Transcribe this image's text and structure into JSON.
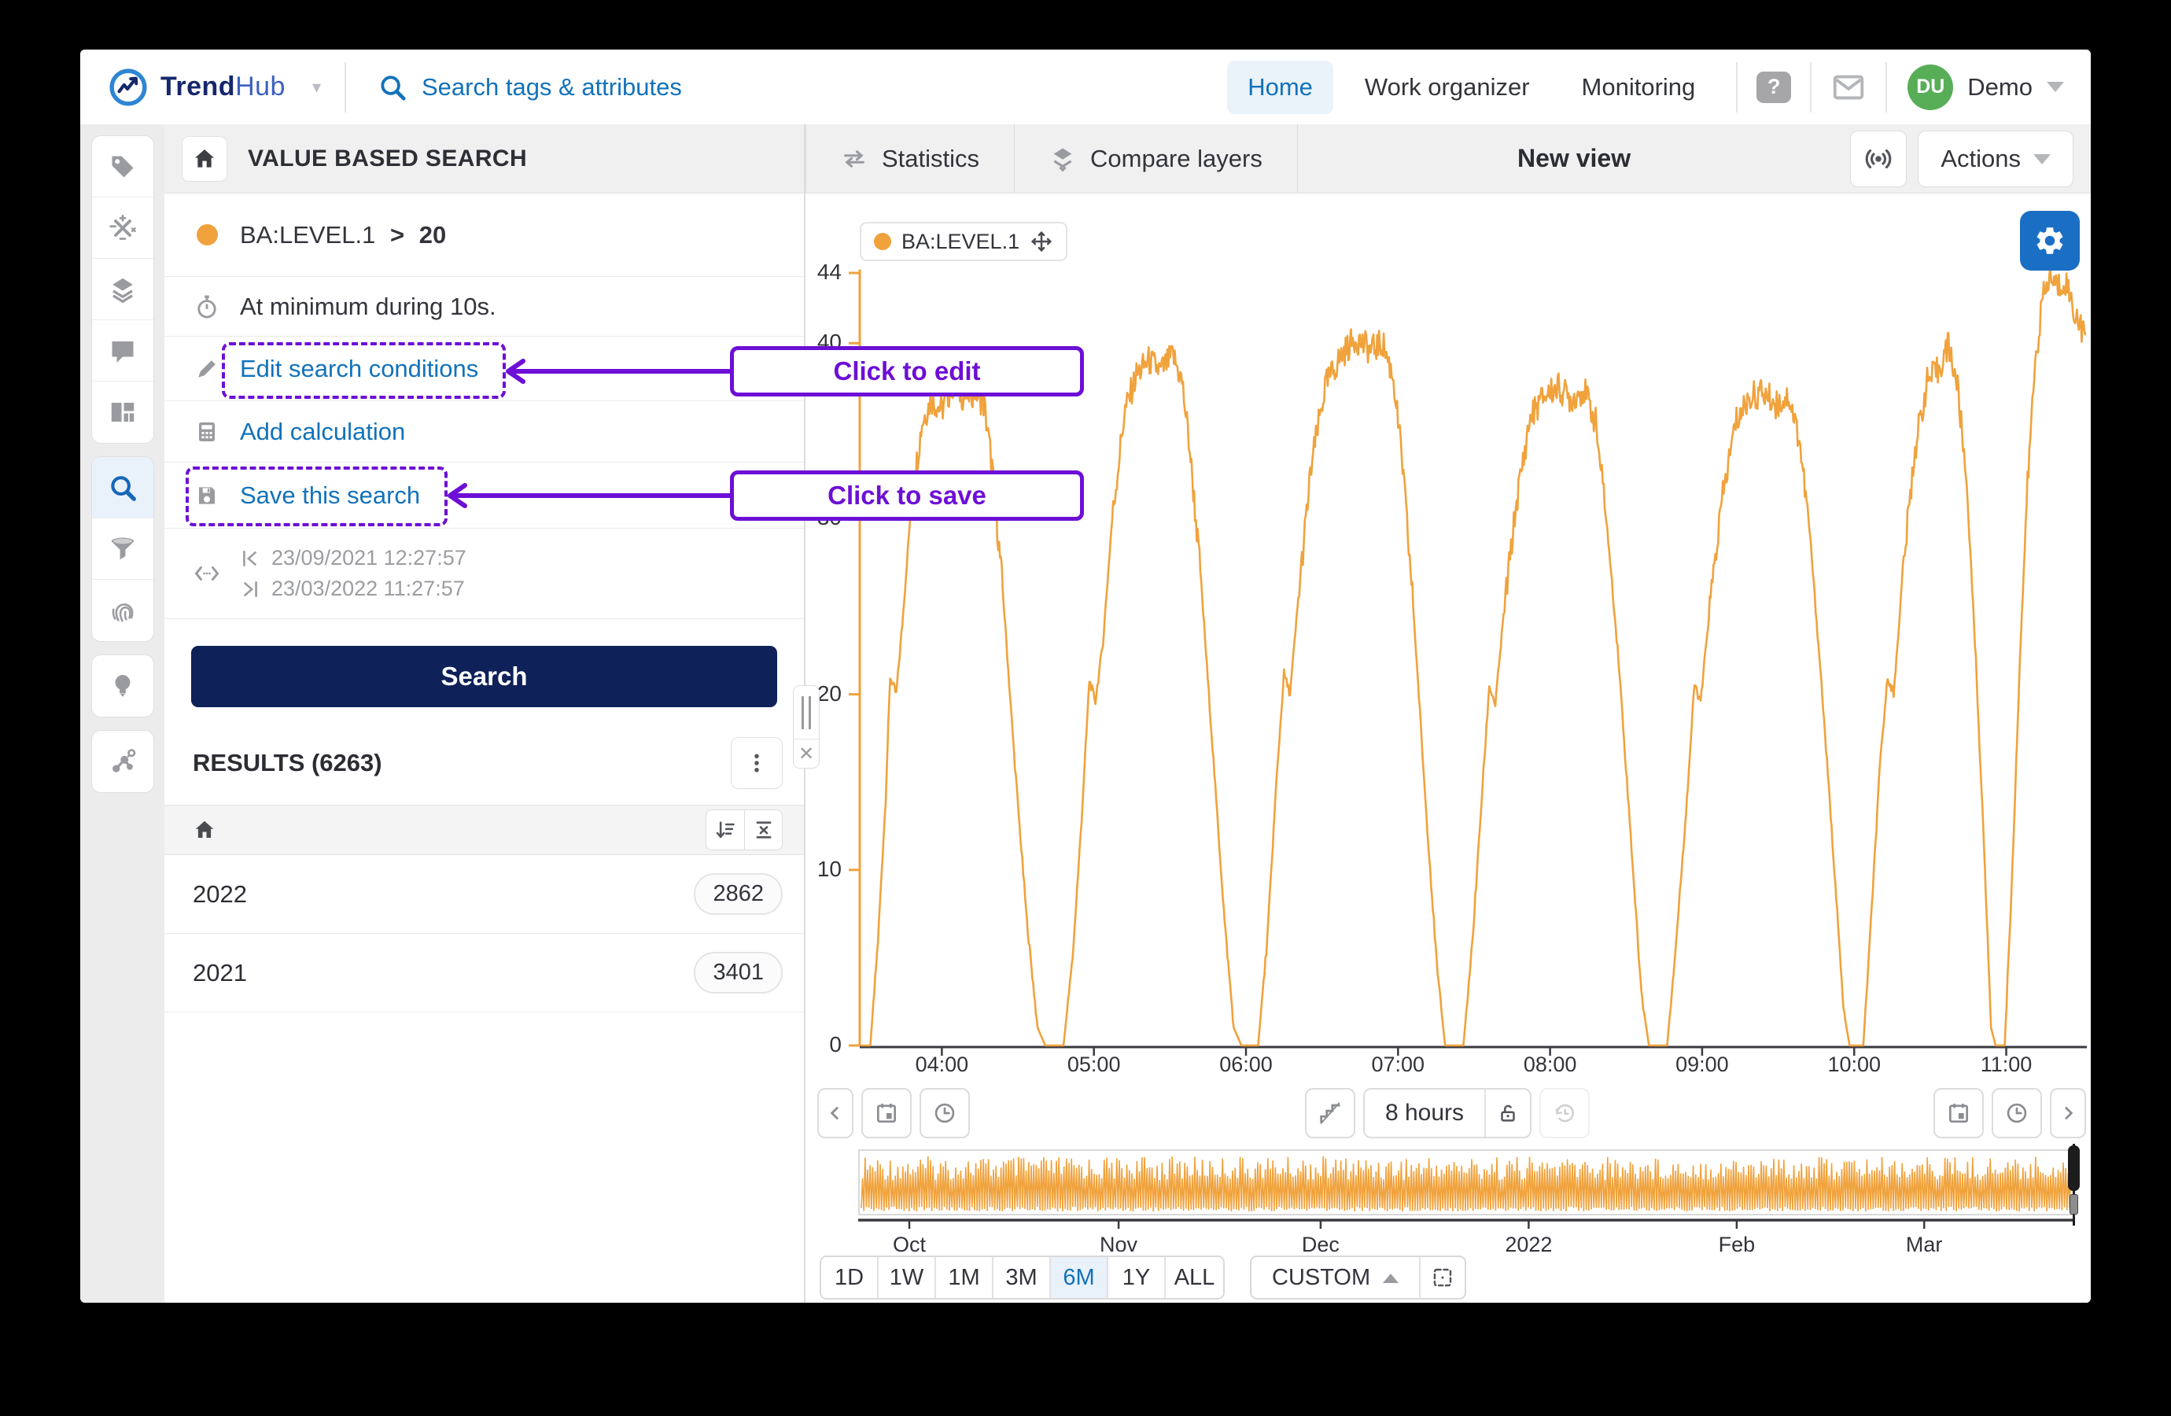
{
  "topbar": {
    "brand": {
      "name_bold": "Trend",
      "name_light": "Hub"
    },
    "search_placeholder": "Search tags & attributes",
    "nav": [
      {
        "label": "Home",
        "active": true
      },
      {
        "label": "Work organizer",
        "active": false
      },
      {
        "label": "Monitoring",
        "active": false
      }
    ],
    "user": {
      "initials": "DU",
      "name": "Demo",
      "avatar_color": "#57ae57"
    }
  },
  "rail": {
    "active_tool": "search",
    "tools": [
      "tags",
      "calculations",
      "layers",
      "comments",
      "dashboards",
      "search",
      "filters",
      "fingerprints",
      "recommendations",
      "machine-learning"
    ]
  },
  "panel": {
    "header": {
      "title": "VALUE BASED SEARCH"
    },
    "conditions": {
      "tag": "BA:LEVEL.1",
      "operator": ">",
      "value": "20",
      "duration": "At minimum during 10s.",
      "edit_link": "Edit search conditions",
      "add_calc_link": "Add calculation",
      "save_link": "Save this search",
      "start_time": "23/09/2021 12:27:57",
      "end_time": "23/03/2022 11:27:57"
    },
    "search_button": "Search",
    "results": {
      "title": "RESULTS (6263)",
      "rows": [
        {
          "label": "2022",
          "count": "2862"
        },
        {
          "label": "2021",
          "count": "3401"
        }
      ]
    }
  },
  "chart_header": {
    "tabs": [
      {
        "label": "Statistics"
      },
      {
        "label": "Compare layers"
      }
    ],
    "title": "New view",
    "actions_button": "Actions"
  },
  "annotations": [
    {
      "text": "Click to edit"
    },
    {
      "text": "Click to save"
    }
  ],
  "toolbar": {
    "duration_label": "8 hours"
  },
  "zoombar": {
    "presets": [
      "1D",
      "1W",
      "1M",
      "3M",
      "6M",
      "1Y",
      "ALL"
    ],
    "active": "6M",
    "custom_label": "CUSTOM"
  },
  "chart_data": {
    "type": "line",
    "title": "",
    "legend": {
      "label": "BA:LEVEL.1",
      "color": "#f0a23c"
    },
    "x_axis": {
      "unit": "time-of-day",
      "ticks": [
        "04:00",
        "05:00",
        "06:00",
        "07:00",
        "08:00",
        "09:00",
        "10:00",
        "11:00"
      ],
      "tick_hours": [
        4,
        5,
        6,
        7,
        8,
        9,
        10,
        11
      ],
      "range_hours": [
        3.46,
        11.53
      ]
    },
    "y_axis": {
      "ticks": [
        0,
        10,
        20,
        30,
        40,
        44
      ],
      "range": [
        0,
        44.6
      ],
      "axis_color": "#f0a23c"
    },
    "grid": false,
    "series": [
      {
        "name": "BA:LEVEL.1",
        "color": "#f0a23c",
        "points": [
          [
            3.47,
            0
          ],
          [
            3.53,
            0
          ],
          [
            3.58,
            6
          ],
          [
            3.63,
            14
          ],
          [
            3.66,
            21
          ],
          [
            3.7,
            20
          ],
          [
            3.74,
            24
          ],
          [
            3.8,
            31
          ],
          [
            3.87,
            35.5
          ],
          [
            3.93,
            36.8
          ],
          [
            4.0,
            36.2
          ],
          [
            4.07,
            37.6
          ],
          [
            4.15,
            36.9
          ],
          [
            4.22,
            37.3
          ],
          [
            4.28,
            36.4
          ],
          [
            4.33,
            33
          ],
          [
            4.4,
            26
          ],
          [
            4.48,
            16
          ],
          [
            4.56,
            7
          ],
          [
            4.63,
            1
          ],
          [
            4.68,
            0
          ],
          [
            4.8,
            0
          ],
          [
            4.86,
            5
          ],
          [
            4.92,
            13
          ],
          [
            4.97,
            20.8
          ],
          [
            5.01,
            19.6
          ],
          [
            5.06,
            23
          ],
          [
            5.12,
            30
          ],
          [
            5.2,
            36
          ],
          [
            5.28,
            38.2
          ],
          [
            5.36,
            39.0
          ],
          [
            5.44,
            38.4
          ],
          [
            5.52,
            39.3
          ],
          [
            5.58,
            37.8
          ],
          [
            5.63,
            34
          ],
          [
            5.7,
            27
          ],
          [
            5.78,
            17
          ],
          [
            5.86,
            7
          ],
          [
            5.92,
            1
          ],
          [
            5.97,
            0
          ],
          [
            6.08,
            0
          ],
          [
            6.14,
            6
          ],
          [
            6.2,
            15
          ],
          [
            6.25,
            21.2
          ],
          [
            6.29,
            20.0
          ],
          [
            6.35,
            26
          ],
          [
            6.43,
            33
          ],
          [
            6.52,
            37.5
          ],
          [
            6.62,
            39.2
          ],
          [
            6.72,
            40.3
          ],
          [
            6.82,
            39.6
          ],
          [
            6.9,
            40.0
          ],
          [
            6.97,
            38.0
          ],
          [
            7.03,
            33
          ],
          [
            7.1,
            25
          ],
          [
            7.18,
            14
          ],
          [
            7.26,
            4
          ],
          [
            7.31,
            0
          ],
          [
            7.43,
            0
          ],
          [
            7.49,
            6
          ],
          [
            7.55,
            14
          ],
          [
            7.6,
            20.5
          ],
          [
            7.64,
            19.4
          ],
          [
            7.7,
            25
          ],
          [
            7.78,
            31
          ],
          [
            7.87,
            35.8
          ],
          [
            7.96,
            37.0
          ],
          [
            8.05,
            37.5
          ],
          [
            8.14,
            36.8
          ],
          [
            8.22,
            37.4
          ],
          [
            8.3,
            35.5
          ],
          [
            8.37,
            30
          ],
          [
            8.45,
            22
          ],
          [
            8.53,
            12
          ],
          [
            8.6,
            3
          ],
          [
            8.65,
            0
          ],
          [
            8.77,
            0
          ],
          [
            8.83,
            6
          ],
          [
            8.9,
            14
          ],
          [
            8.95,
            20.6
          ],
          [
            8.99,
            19.5
          ],
          [
            9.05,
            25
          ],
          [
            9.13,
            31
          ],
          [
            9.22,
            35.5
          ],
          [
            9.31,
            36.9
          ],
          [
            9.4,
            37.2
          ],
          [
            9.49,
            36.5
          ],
          [
            9.57,
            37.0
          ],
          [
            9.64,
            34.5
          ],
          [
            9.71,
            29
          ],
          [
            9.79,
            20
          ],
          [
            9.87,
            10
          ],
          [
            9.93,
            2
          ],
          [
            9.97,
            0
          ],
          [
            10.06,
            0
          ],
          [
            10.11,
            7
          ],
          [
            10.17,
            16
          ],
          [
            10.22,
            21.0
          ],
          [
            10.26,
            20.0
          ],
          [
            10.32,
            27
          ],
          [
            10.4,
            34
          ],
          [
            10.48,
            37.8
          ],
          [
            10.55,
            38.4
          ],
          [
            10.62,
            39.9
          ],
          [
            10.68,
            37.5
          ],
          [
            10.74,
            32
          ],
          [
            10.8,
            22
          ],
          [
            10.86,
            10
          ],
          [
            10.9,
            1
          ],
          [
            10.93,
            0
          ],
          [
            10.99,
            0
          ],
          [
            11.04,
            10
          ],
          [
            11.09,
            22
          ],
          [
            11.14,
            32
          ],
          [
            11.19,
            39
          ],
          [
            11.24,
            42.5
          ],
          [
            11.29,
            43.8
          ],
          [
            11.34,
            43.2
          ],
          [
            11.39,
            43.6
          ],
          [
            11.44,
            42.0
          ],
          [
            11.49,
            41.0
          ],
          [
            11.52,
            40.5
          ]
        ]
      }
    ],
    "overview": {
      "description": "6-month dense oscillating preview of BA:LEVEL.1",
      "months": [
        "Oct",
        "Nov",
        "Dec",
        "2022",
        "Feb",
        "Mar"
      ],
      "positions": [
        0.042,
        0.214,
        0.38,
        0.551,
        0.722,
        0.876
      ]
    }
  }
}
